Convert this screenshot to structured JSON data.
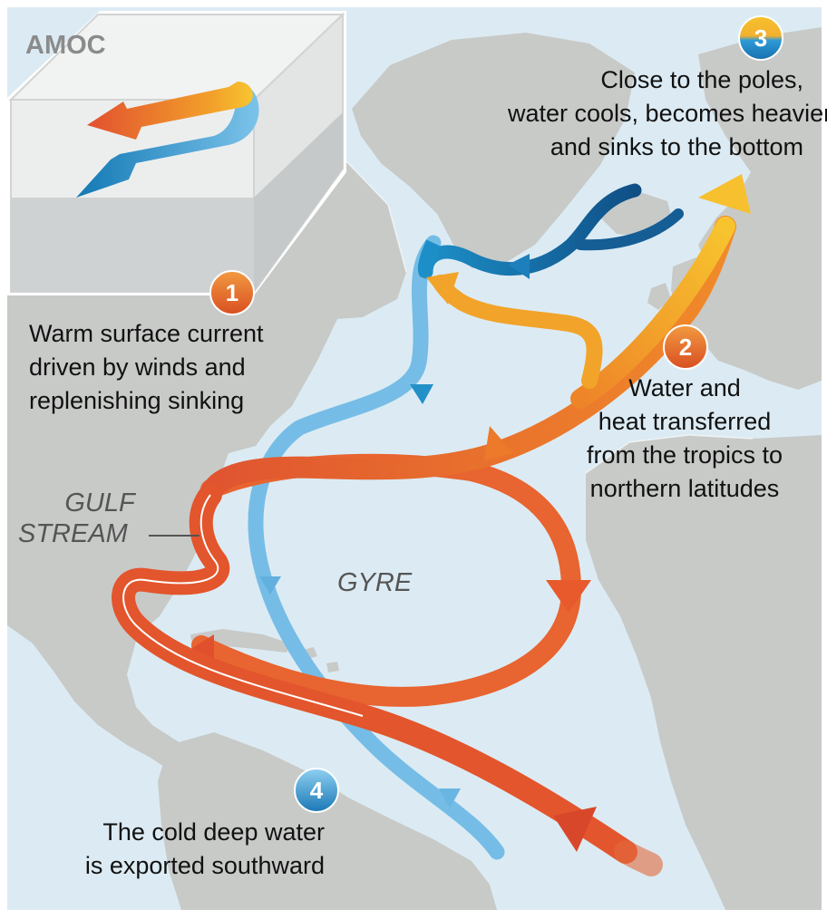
{
  "inset_title": "AMOC",
  "steps": [
    {
      "number": "1",
      "lines": [
        "Warm surface current",
        "driven by winds and",
        "replenishing sinking"
      ]
    },
    {
      "number": "2",
      "lines": [
        "Water and",
        "heat transferred",
        "from the tropics to",
        "northern latitudes"
      ]
    },
    {
      "number": "3",
      "lines": [
        "Close to the poles,",
        "water cools, becomes heavier",
        "and sinks to the bottom"
      ]
    },
    {
      "number": "4",
      "lines": [
        "The cold deep water",
        "is exported southward"
      ]
    }
  ],
  "map_labels": {
    "gulf_stream": [
      "GULF",
      "STREAM"
    ],
    "gyre": "GYRE"
  },
  "colors": {
    "warm": "#e3552c",
    "warm_light": "#f7c42e",
    "cold": "#75bde6",
    "cold_deep": "#155d95",
    "land": "#c8cac8",
    "ocean": "#dcebf3"
  }
}
